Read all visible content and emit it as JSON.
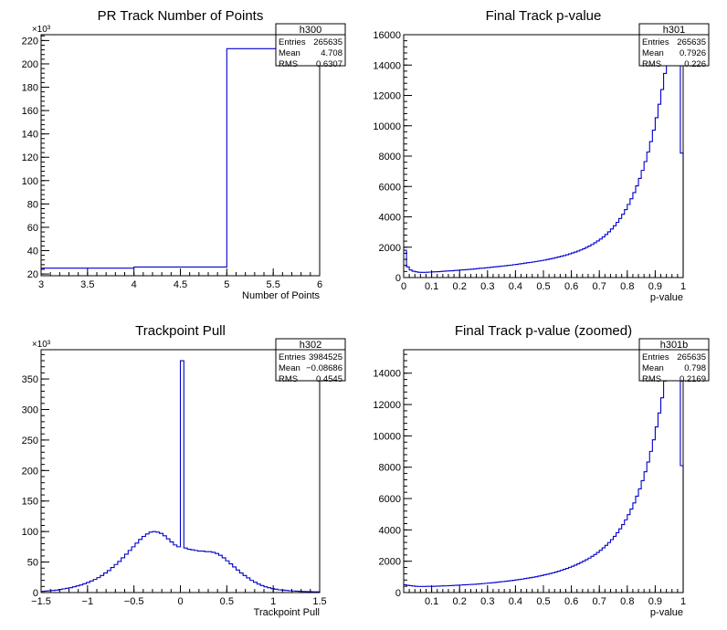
{
  "chart_data": [
    {
      "type": "histogram",
      "title": "PR Track Number of Points",
      "xlabel": "Number of Points",
      "ylabel": "",
      "y_multiplier": "×10³",
      "xlim": [
        3,
        6
      ],
      "ylim": [
        18.5,
        225
      ],
      "x_ticks": [
        "3",
        "3.5",
        "4",
        "4.5",
        "5",
        "5.5",
        "6"
      ],
      "y_ticks": [
        "20",
        "40",
        "60",
        "80",
        "100",
        "120",
        "140",
        "160",
        "180",
        "200",
        "220"
      ],
      "bin_edges": [
        3,
        4,
        5,
        6
      ],
      "values": [
        25,
        26,
        213
      ],
      "color": "#0000cc",
      "stats": {
        "name": "h300",
        "rows": [
          {
            "label": "Entries",
            "value": "265635"
          },
          {
            "label": "Mean",
            "value": "4.708"
          },
          {
            "label": "RMS",
            "value": "0.6307"
          }
        ]
      }
    },
    {
      "type": "histogram",
      "title": "Final Track p-value",
      "xlabel": "p-value",
      "ylabel": "",
      "xlim": [
        0,
        1
      ],
      "ylim": [
        0,
        16000
      ],
      "x_ticks": [
        "0",
        "0.1",
        "0.2",
        "0.3",
        "0.4",
        "0.5",
        "0.6",
        "0.7",
        "0.8",
        "0.9",
        "1"
      ],
      "y_ticks": [
        "0",
        "2000",
        "4000",
        "6000",
        "8000",
        "10000",
        "12000",
        "14000",
        "16000"
      ],
      "bin_edges_range": [
        0,
        1
      ],
      "values": [
        1800,
        700,
        500,
        420,
        380,
        350,
        340,
        340,
        350,
        360,
        370,
        380,
        390,
        400,
        420,
        430,
        440,
        450,
        470,
        480,
        500,
        510,
        520,
        540,
        550,
        570,
        590,
        610,
        620,
        640,
        660,
        680,
        700,
        720,
        740,
        760,
        780,
        800,
        820,
        850,
        870,
        900,
        920,
        950,
        980,
        1000,
        1030,
        1060,
        1090,
        1120,
        1150,
        1190,
        1230,
        1270,
        1310,
        1360,
        1400,
        1450,
        1500,
        1560,
        1620,
        1680,
        1750,
        1820,
        1900,
        1990,
        2080,
        2180,
        2290,
        2410,
        2540,
        2680,
        2840,
        3010,
        3200,
        3410,
        3640,
        3890,
        4170,
        4480,
        4820,
        5190,
        5600,
        6040,
        6530,
        7060,
        7640,
        8270,
        8960,
        9710,
        10530,
        11420,
        12390,
        13450,
        15600,
        15900,
        15900,
        15800,
        15800,
        8200
      ],
      "color": "#0000cc",
      "stats": {
        "name": "h301",
        "rows": [
          {
            "label": "Entries",
            "value": "265635"
          },
          {
            "label": "Mean",
            "value": "0.7926"
          },
          {
            "label": "RMS",
            "value": "0.226"
          }
        ]
      }
    },
    {
      "type": "histogram",
      "title": "Trackpoint Pull",
      "xlabel": "Trackpoint Pull",
      "ylabel": "",
      "y_multiplier": "×10³",
      "xlim": [
        -1.5,
        1.5
      ],
      "ylim": [
        0,
        398
      ],
      "x_ticks": [
        "−1.5",
        "−1",
        "−0.5",
        "0",
        "0.5",
        "1",
        "1.5"
      ],
      "y_ticks": [
        "0",
        "50",
        "100",
        "150",
        "200",
        "250",
        "300",
        "350"
      ],
      "bin_edges_range": [
        -1.5,
        1.5
      ],
      "values": [
        2,
        2.5,
        3,
        3.5,
        4,
        5,
        6,
        7,
        8,
        9.5,
        11,
        12.5,
        14.5,
        16.5,
        19,
        21.5,
        24.5,
        28,
        32,
        36,
        41,
        46,
        51,
        57,
        63,
        69,
        75,
        81,
        87,
        92,
        96,
        99,
        100,
        99,
        97,
        93,
        88,
        83,
        78,
        75,
        380,
        73,
        71,
        70,
        69,
        68,
        68,
        67,
        67,
        66,
        64,
        61,
        57,
        52,
        47,
        42,
        37,
        32,
        28,
        24,
        20,
        17,
        14,
        11.5,
        9.5,
        8,
        6.5,
        5.5,
        4.5,
        4,
        3.5,
        3,
        2.6,
        2.3,
        2,
        1.8,
        1.6,
        1.5,
        1.3,
        1.2
      ],
      "color": "#0000cc",
      "stats": {
        "name": "h302",
        "rows": [
          {
            "label": "Entries",
            "value": "3984525"
          },
          {
            "label": "Mean",
            "value": "−0.08686"
          },
          {
            "label": "RMS",
            "value": "0.4545"
          }
        ]
      }
    },
    {
      "type": "histogram",
      "title": "Final Track p-value (zoomed)",
      "xlabel": "p-value",
      "ylabel": "",
      "xlim": [
        0,
        1
      ],
      "ylim": [
        0,
        15500
      ],
      "x_ticks": [
        "0.1",
        "0.2",
        "0.3",
        "0.4",
        "0.5",
        "0.6",
        "0.7",
        "0.8",
        "0.9",
        "1"
      ],
      "x_tick_values": [
        0.1,
        0.2,
        0.3,
        0.4,
        0.5,
        0.6,
        0.7,
        0.8,
        0.9,
        1
      ],
      "y_ticks": [
        "0",
        "2000",
        "4000",
        "6000",
        "8000",
        "10000",
        "12000",
        "14000"
      ],
      "bin_edges_range": [
        0,
        1
      ],
      "values": [
        500,
        460,
        440,
        420,
        400,
        390,
        390,
        390,
        395,
        400,
        400,
        405,
        410,
        420,
        425,
        430,
        440,
        450,
        460,
        470,
        480,
        490,
        500,
        510,
        520,
        530,
        545,
        560,
        575,
        590,
        605,
        620,
        640,
        660,
        680,
        700,
        720,
        740,
        760,
        785,
        810,
        835,
        860,
        890,
        920,
        950,
        980,
        1010,
        1050,
        1090,
        1130,
        1170,
        1210,
        1260,
        1310,
        1360,
        1420,
        1480,
        1540,
        1610,
        1680,
        1750,
        1830,
        1920,
        2010,
        2100,
        2200,
        2310,
        2430,
        2560,
        2700,
        2850,
        3010,
        3190,
        3380,
        3590,
        3820,
        4070,
        4340,
        4640,
        4970,
        5330,
        5720,
        6150,
        6620,
        7140,
        7710,
        8330,
        9010,
        9750,
        10570,
        11460,
        12430,
        13500,
        15400,
        15400,
        15400,
        15400,
        15400,
        8100
      ],
      "color": "#0000cc",
      "stats": {
        "name": "h301b",
        "rows": [
          {
            "label": "Entries",
            "value": "265635"
          },
          {
            "label": "Mean",
            "value": "0.798"
          },
          {
            "label": "RMS",
            "value": "0.2169"
          }
        ]
      }
    }
  ]
}
